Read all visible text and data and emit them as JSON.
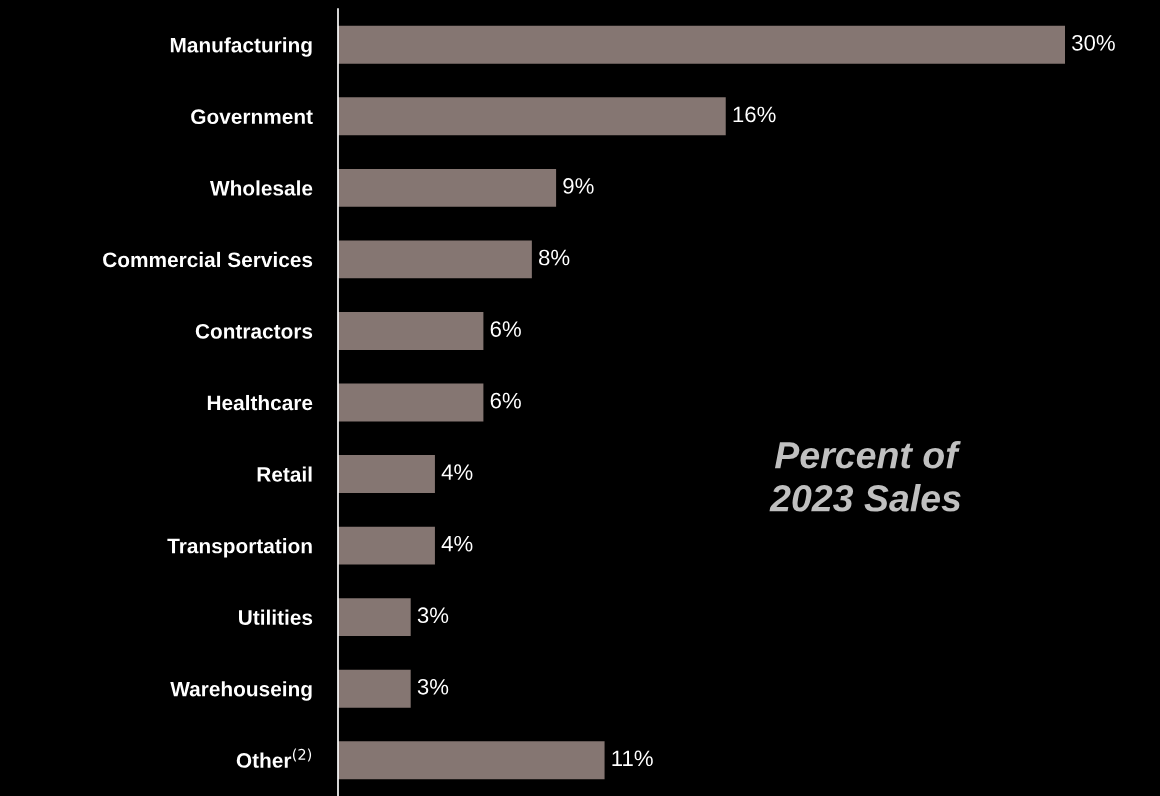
{
  "chart_data": {
    "type": "bar",
    "orientation": "horizontal",
    "title": "Percent of\n2023 Sales",
    "categories": [
      "Manufacturing",
      "Government",
      "Wholesale",
      "Commercial Services",
      "Contractors",
      "Healthcare",
      "Retail",
      "Transportation",
      "Utilities",
      "Warehouseing",
      "Other$^{(2)}$"
    ],
    "values": [
      30,
      16,
      9,
      8,
      6,
      6,
      4,
      4,
      3,
      3,
      11
    ],
    "value_labels": [
      "30%",
      "16%",
      "9%",
      "8%",
      "6%",
      "6%",
      "4%",
      "4%",
      "3%",
      "3%",
      "11%"
    ],
    "color": "#857672",
    "grid": false,
    "legend": false
  }
}
